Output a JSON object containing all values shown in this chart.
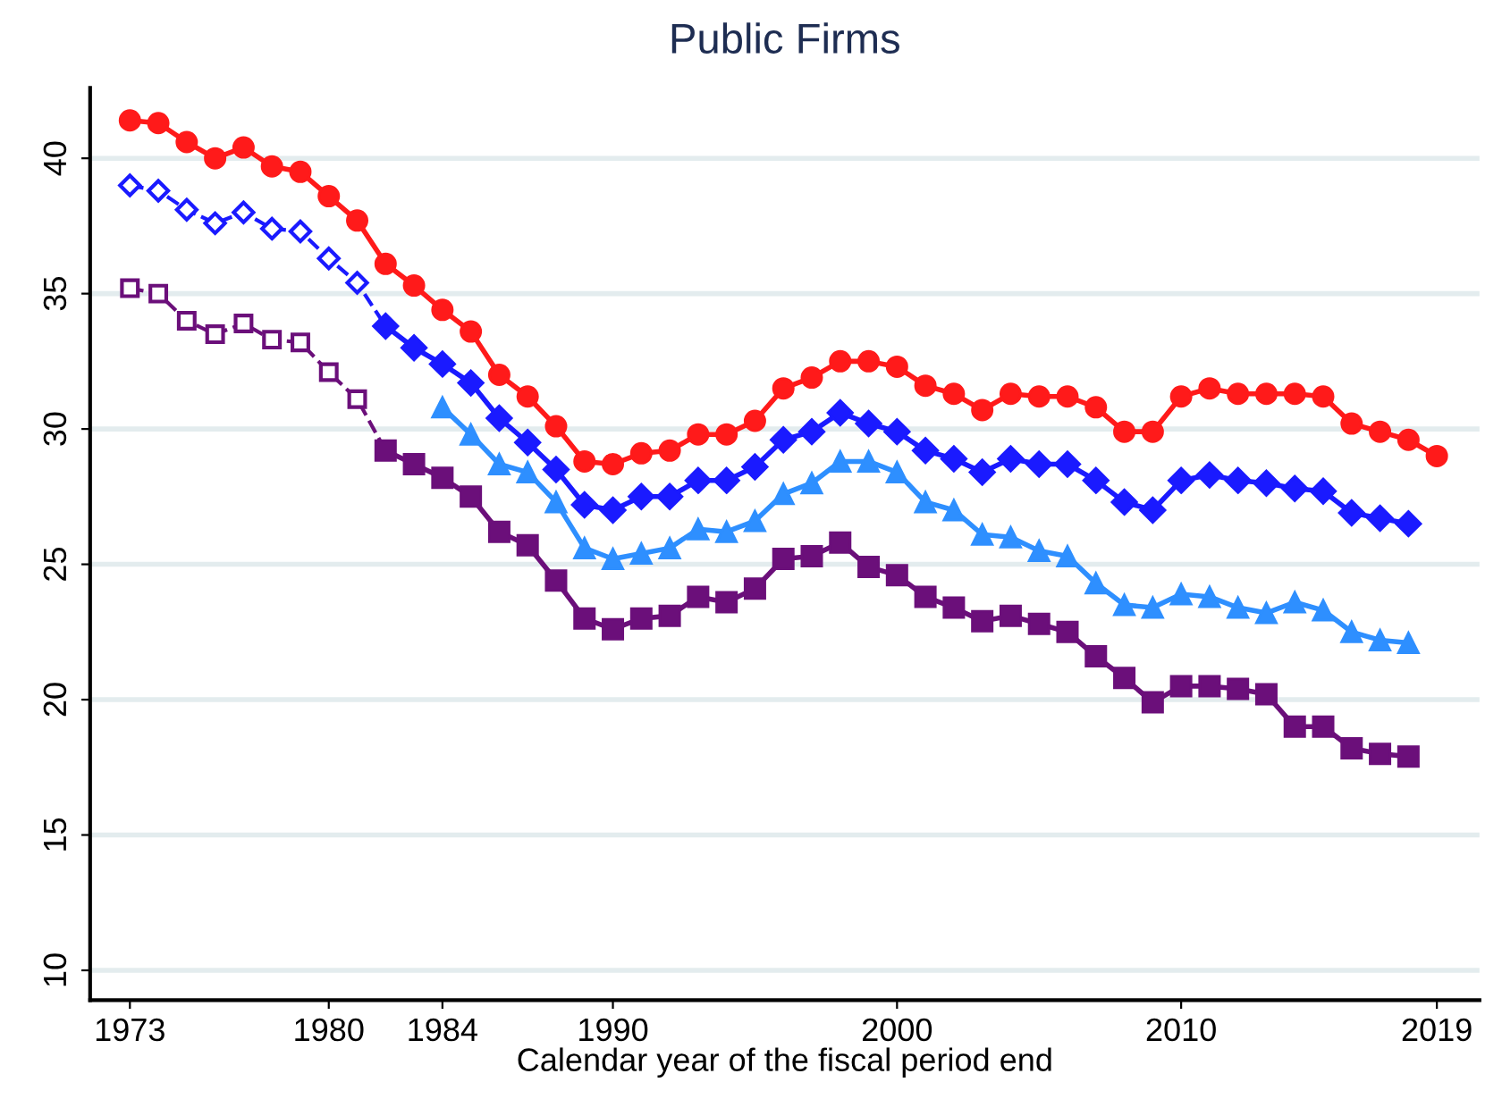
{
  "chart_data": {
    "type": "line",
    "title": "Public Firms",
    "xlabel": "Calendar year of the fiscal period end",
    "xlim": [
      1971.6,
      2020.5
    ],
    "xticks": [
      1973,
      1980,
      1984,
      1990,
      2000,
      2010,
      2019
    ],
    "ylim": [
      8.9,
      42.6
    ],
    "yticks": [
      10,
      15,
      20,
      25,
      30,
      35,
      40
    ],
    "grid": "y",
    "series": [
      {
        "color": "#ff1a1a",
        "marker": "circle",
        "line_style": "solid",
        "x": [
          1973,
          1974,
          1975,
          1976,
          1977,
          1978,
          1979,
          1980,
          1981,
          1982,
          1983,
          1984,
          1985,
          1986,
          1987,
          1988,
          1989,
          1990,
          1991,
          1992,
          1993,
          1994,
          1995,
          1996,
          1997,
          1998,
          1999,
          2000,
          2001,
          2002,
          2003,
          2004,
          2005,
          2006,
          2007,
          2008,
          2009,
          2010,
          2011,
          2012,
          2013,
          2014,
          2015,
          2016,
          2017,
          2018,
          2019
        ],
        "values": [
          41.4,
          41.3,
          40.6,
          40.0,
          40.4,
          39.7,
          39.5,
          38.6,
          37.7,
          36.1,
          35.3,
          34.4,
          33.6,
          32.0,
          31.2,
          30.1,
          28.8,
          28.7,
          29.1,
          29.2,
          29.8,
          29.8,
          30.3,
          31.5,
          31.9,
          32.5,
          32.5,
          32.3,
          31.6,
          31.3,
          30.7,
          31.3,
          31.2,
          31.2,
          30.8,
          29.9,
          29.9,
          31.2,
          31.5,
          31.3,
          31.3,
          31.3,
          31.2,
          30.2,
          29.9,
          29.6,
          29.0
        ]
      },
      {
        "color": "#1a1aff",
        "marker": "diamond",
        "line_style": "dashed",
        "x": [
          1973,
          1974,
          1975,
          1976,
          1977,
          1978,
          1979,
          1980,
          1981,
          1982
        ],
        "values": [
          39.0,
          38.8,
          38.1,
          37.6,
          38.0,
          37.4,
          37.3,
          36.3,
          35.4,
          33.8
        ]
      },
      {
        "color": "#1a1aff",
        "marker": "diamond",
        "line_style": "solid",
        "x": [
          1982,
          1983,
          1984,
          1985,
          1986,
          1987,
          1988,
          1989,
          1990,
          1991,
          1992,
          1993,
          1994,
          1995,
          1996,
          1997,
          1998,
          1999,
          2000,
          2001,
          2002,
          2003,
          2004,
          2005,
          2006,
          2007,
          2008,
          2009,
          2010,
          2011,
          2012,
          2013,
          2014,
          2015,
          2016,
          2017,
          2018
        ],
        "values": [
          33.8,
          33.0,
          32.4,
          31.7,
          30.4,
          29.5,
          28.5,
          27.2,
          27.0,
          27.5,
          27.5,
          28.1,
          28.1,
          28.6,
          29.6,
          29.9,
          30.6,
          30.2,
          29.9,
          29.2,
          28.9,
          28.4,
          28.9,
          28.7,
          28.7,
          28.1,
          27.3,
          27.0,
          28.1,
          28.3,
          28.1,
          28.0,
          27.8,
          27.7,
          26.9,
          26.7,
          26.5
        ]
      },
      {
        "color": "#2e8fff",
        "marker": "triangle",
        "line_style": "solid",
        "x": [
          1984,
          1985,
          1986,
          1987,
          1988,
          1989,
          1990,
          1991,
          1992,
          1993,
          1994,
          1995,
          1996,
          1997,
          1998,
          1999,
          2000,
          2001,
          2002,
          2003,
          2004,
          2005,
          2006,
          2007,
          2008,
          2009,
          2010,
          2011,
          2012,
          2013,
          2014,
          2015,
          2016,
          2017,
          2018
        ],
        "values": [
          30.8,
          29.8,
          28.7,
          28.4,
          27.3,
          25.6,
          25.2,
          25.4,
          25.6,
          26.3,
          26.2,
          26.6,
          27.6,
          28.0,
          28.8,
          28.8,
          28.4,
          27.3,
          27.0,
          26.1,
          26.0,
          25.5,
          25.3,
          24.3,
          23.5,
          23.4,
          23.9,
          23.8,
          23.4,
          23.2,
          23.6,
          23.3,
          22.5,
          22.2,
          22.1
        ]
      },
      {
        "color": "#6b0f7a",
        "marker": "square",
        "line_style": "dashed",
        "x": [
          1973,
          1974,
          1975,
          1976,
          1977,
          1978,
          1979,
          1980,
          1981,
          1982
        ],
        "values": [
          35.2,
          35.0,
          34.0,
          33.5,
          33.9,
          33.3,
          33.2,
          32.1,
          31.1,
          29.2
        ]
      },
      {
        "color": "#6b0f7a",
        "marker": "square",
        "line_style": "solid",
        "x": [
          1982,
          1983,
          1984,
          1985,
          1986,
          1987,
          1988,
          1989,
          1990,
          1991,
          1992,
          1993,
          1994,
          1995,
          1996,
          1997,
          1998,
          1999,
          2000,
          2001,
          2002,
          2003,
          2004,
          2005,
          2006,
          2007,
          2008,
          2009,
          2010,
          2011,
          2012,
          2013,
          2014,
          2015,
          2016,
          2017,
          2018
        ],
        "values": [
          29.2,
          28.7,
          28.2,
          27.5,
          26.2,
          25.7,
          24.4,
          23.0,
          22.6,
          23.0,
          23.1,
          23.8,
          23.6,
          24.1,
          25.2,
          25.3,
          25.8,
          24.9,
          24.6,
          23.8,
          23.4,
          22.9,
          23.1,
          22.8,
          22.5,
          21.6,
          20.8,
          19.9,
          20.5,
          20.5,
          20.4,
          20.2,
          19.0,
          19.0,
          18.2,
          18.0,
          17.9
        ]
      }
    ]
  }
}
